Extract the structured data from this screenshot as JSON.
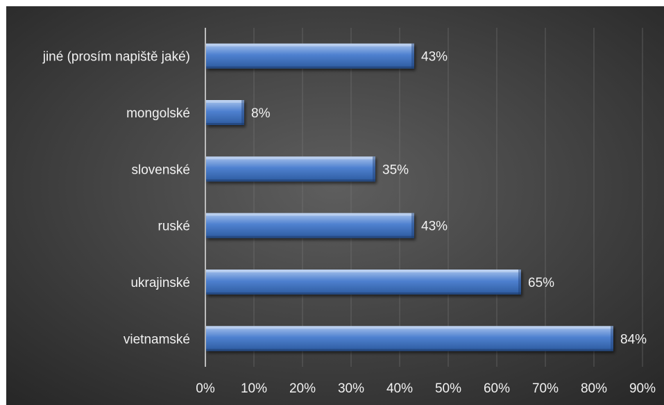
{
  "chart_data": {
    "type": "bar",
    "orientation": "horizontal",
    "categories": [
      "jiné (prosím napiště jaké)",
      "mongolské",
      "slovenské",
      "ruské",
      "ukrajinské",
      "vietnamské"
    ],
    "values": [
      43,
      8,
      35,
      43,
      65,
      84
    ],
    "value_labels": [
      "43%",
      "8%",
      "35%",
      "43%",
      "65%",
      "84%"
    ],
    "x_ticks": [
      "0%",
      "10%",
      "20%",
      "30%",
      "40%",
      "50%",
      "60%",
      "70%",
      "80%",
      "90%"
    ],
    "xlim": [
      0,
      90
    ],
    "title": "",
    "xlabel": "",
    "ylabel": "",
    "grid": "vertical",
    "legend": "none",
    "colors": {
      "bar_light": "#a9c4ec",
      "bar": "#4f81d0",
      "bar_dark": "#2c5a9e",
      "bg_center": "#5e5e5e",
      "bg_edge": "#262626",
      "text": "#f2f2f2",
      "grid": "#7a7a7a"
    }
  }
}
